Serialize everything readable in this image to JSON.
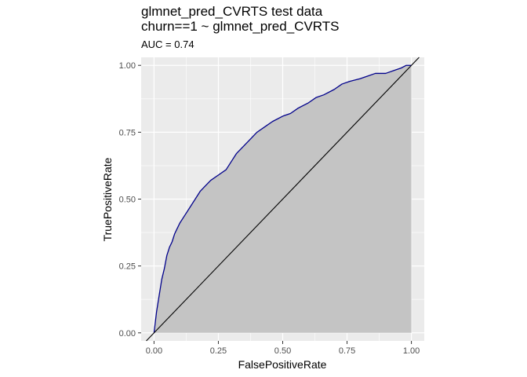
{
  "chart_data": {
    "type": "area",
    "title_lines": [
      "glmnet_pred_CVRTS test data",
      "churn==1 ~ glmnet_pred_CVRTS"
    ],
    "subtitle": "AUC = 0.74",
    "xlabel": "FalsePositiveRate",
    "ylabel": "TruePositiveRate",
    "xlim": [
      -0.05,
      1.05
    ],
    "ylim": [
      -0.03,
      1.03
    ],
    "x_ticks": [
      0.0,
      0.25,
      0.5,
      0.75,
      1.0
    ],
    "x_tick_labels": [
      "0.00",
      "0.25",
      "0.50",
      "0.75",
      "1.00"
    ],
    "y_ticks": [
      0.0,
      0.25,
      0.5,
      0.75,
      1.0
    ],
    "y_tick_labels": [
      "0.00",
      "0.25",
      "0.50",
      "0.75",
      "1.00"
    ],
    "grid": true,
    "series": [
      {
        "x": [
          0.0,
          0.005,
          0.01,
          0.015,
          0.02,
          0.03,
          0.04,
          0.05,
          0.06,
          0.07,
          0.08,
          0.09,
          0.1,
          0.12,
          0.14,
          0.16,
          0.18,
          0.2,
          0.22,
          0.25,
          0.28,
          0.3,
          0.32,
          0.35,
          0.38,
          0.4,
          0.43,
          0.46,
          0.5,
          0.53,
          0.56,
          0.6,
          0.63,
          0.66,
          0.7,
          0.73,
          0.76,
          0.8,
          0.83,
          0.86,
          0.9,
          0.93,
          0.96,
          0.98,
          1.0
        ],
        "y": [
          0.0,
          0.04,
          0.08,
          0.11,
          0.14,
          0.2,
          0.24,
          0.29,
          0.32,
          0.34,
          0.37,
          0.39,
          0.41,
          0.44,
          0.47,
          0.5,
          0.53,
          0.55,
          0.57,
          0.59,
          0.61,
          0.64,
          0.67,
          0.7,
          0.73,
          0.75,
          0.77,
          0.79,
          0.81,
          0.82,
          0.84,
          0.86,
          0.88,
          0.89,
          0.91,
          0.93,
          0.94,
          0.95,
          0.96,
          0.97,
          0.97,
          0.98,
          0.99,
          1.0,
          1.0
        ]
      }
    ],
    "colors": {
      "panel_background": "#ebebeb",
      "grid_major": "#ffffff",
      "area_fill": "#c4c4c4",
      "curve": "#00008b",
      "diagonal": "#000000"
    }
  }
}
